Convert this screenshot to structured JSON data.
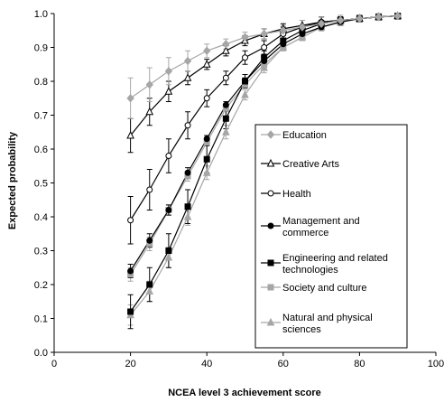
{
  "chart_data": {
    "type": "line",
    "title": "",
    "xlabel": "NCEA level 3 achievement score",
    "ylabel": "Expected probability",
    "xlim": [
      0,
      100
    ],
    "ylim": [
      0,
      1
    ],
    "x_ticks": [
      "0",
      "20",
      "40",
      "60",
      "80",
      "100"
    ],
    "y_ticks": [
      "0.0",
      "0.1",
      "0.2",
      "0.3",
      "0.4",
      "0.5",
      "0.6",
      "0.7",
      "0.8",
      "0.9",
      "1.0"
    ],
    "grid": false,
    "legend_position": "right",
    "x": [
      20,
      25,
      30,
      35,
      40,
      45,
      50,
      55,
      60,
      65,
      70,
      75,
      80,
      85,
      90
    ],
    "series": [
      {
        "name": "Education",
        "marker": "diamond",
        "color": "#a6a6a6",
        "line_color": "#a6a6a6",
        "values": [
          0.75,
          0.79,
          0.83,
          0.86,
          0.89,
          0.91,
          0.93,
          0.94,
          0.95,
          0.96,
          0.97,
          0.98,
          0.985,
          0.99,
          0.993
        ],
        "errors": [
          0.06,
          0.05,
          0.04,
          0.03,
          0.02,
          0.015,
          0.015,
          0.015,
          0.015,
          0.02,
          0.02,
          0.015,
          0.01,
          0.01,
          0.01
        ]
      },
      {
        "name": "Creative Arts",
        "marker": "triangle-open",
        "color": "#000000",
        "line_color": "#000000",
        "values": [
          0.64,
          0.71,
          0.77,
          0.81,
          0.85,
          0.89,
          0.92,
          0.94,
          0.955,
          0.965,
          0.975,
          0.98,
          0.985,
          0.99,
          0.993
        ],
        "errors": [
          0.05,
          0.04,
          0.03,
          0.02,
          0.015,
          0.015,
          0.015,
          0.015,
          0.015,
          0.015,
          0.015,
          0.01,
          0.01,
          0.01,
          0.01
        ]
      },
      {
        "name": "Health",
        "marker": "circle-open",
        "color": "#000000",
        "line_color": "#000000",
        "values": [
          0.39,
          0.48,
          0.58,
          0.67,
          0.75,
          0.81,
          0.87,
          0.9,
          0.94,
          0.96,
          0.975,
          0.98,
          0.985,
          0.99,
          0.993
        ],
        "errors": [
          0.07,
          0.06,
          0.05,
          0.04,
          0.025,
          0.02,
          0.02,
          0.02,
          0.02,
          0.02,
          0.015,
          0.01,
          0.01,
          0.01,
          0.01
        ]
      },
      {
        "name": "Management and commerce",
        "marker": "circle",
        "color": "#000000",
        "line_color": "#000000",
        "values": [
          0.24,
          0.33,
          0.42,
          0.53,
          0.63,
          0.73,
          0.8,
          0.86,
          0.91,
          0.94,
          0.96,
          0.975,
          0.985,
          0.99,
          0.993
        ],
        "errors": [
          0.02,
          0.02,
          0.015,
          0.015,
          0.01,
          0.01,
          0.01,
          0.01,
          0.01,
          0.01,
          0.01,
          0.01,
          0.01,
          0.01,
          0.01
        ]
      },
      {
        "name": "Engineering and related technologies",
        "marker": "square",
        "color": "#000000",
        "line_color": "#000000",
        "values": [
          0.12,
          0.2,
          0.3,
          0.43,
          0.57,
          0.69,
          0.8,
          0.87,
          0.92,
          0.95,
          0.97,
          0.98,
          0.985,
          0.99,
          0.993
        ],
        "errors": [
          0.05,
          0.05,
          0.05,
          0.05,
          0.04,
          0.03,
          0.02,
          0.02,
          0.015,
          0.015,
          0.01,
          0.01,
          0.01,
          0.01,
          0.01
        ]
      },
      {
        "name": "Society and culture",
        "marker": "square",
        "color": "#a6a6a6",
        "line_color": "#a6a6a6",
        "values": [
          0.23,
          0.32,
          0.42,
          0.52,
          0.62,
          0.72,
          0.79,
          0.85,
          0.9,
          0.93,
          0.96,
          0.975,
          0.985,
          0.99,
          0.993
        ],
        "errors": [
          0.02,
          0.02,
          0.015,
          0.015,
          0.01,
          0.01,
          0.01,
          0.01,
          0.01,
          0.01,
          0.01,
          0.01,
          0.01,
          0.01,
          0.01
        ]
      },
      {
        "name": "Natural and physical sciences",
        "marker": "triangle",
        "color": "#a6a6a6",
        "line_color": "#a6a6a6",
        "values": [
          0.11,
          0.18,
          0.28,
          0.4,
          0.53,
          0.65,
          0.76,
          0.84,
          0.9,
          0.93,
          0.96,
          0.975,
          0.985,
          0.99,
          0.993
        ],
        "errors": [
          0.03,
          0.03,
          0.03,
          0.025,
          0.02,
          0.02,
          0.015,
          0.015,
          0.01,
          0.01,
          0.01,
          0.01,
          0.01,
          0.01,
          0.01
        ]
      }
    ],
    "legend_labels": [
      [
        "Education"
      ],
      [
        "Creative Arts"
      ],
      [
        "Health"
      ],
      [
        "Management and",
        "commerce"
      ],
      [
        "Engineering and related",
        "technologies"
      ],
      [
        "Society and culture"
      ],
      [
        "Natural and physical",
        "sciences"
      ]
    ]
  }
}
